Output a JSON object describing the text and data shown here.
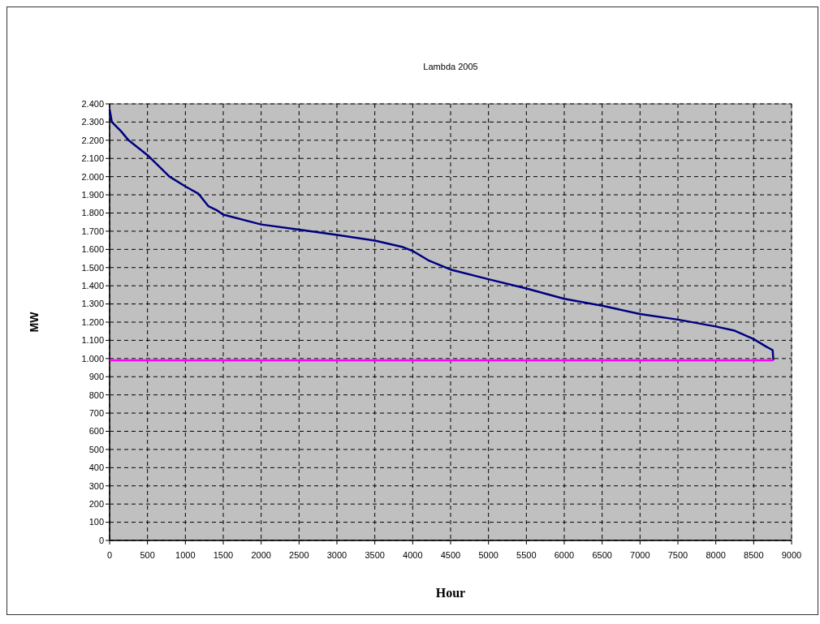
{
  "chart_data": {
    "type": "line",
    "title": "Lambda 2005",
    "xlabel": "Hour",
    "ylabel": "MW",
    "xlim": [
      0,
      9000
    ],
    "xticks": [
      0,
      500,
      1000,
      1500,
      2000,
      2500,
      3000,
      3500,
      4000,
      4500,
      5000,
      5500,
      6000,
      6500,
      7000,
      7500,
      8000,
      8500,
      9000
    ],
    "ylim": [
      0,
      2400
    ],
    "yticks": [
      0,
      100,
      200,
      300,
      400,
      500,
      600,
      700,
      800,
      900,
      {
        "value": 1000,
        "label": "1.000"
      },
      {
        "value": 1100,
        "label": "1.100"
      },
      {
        "value": 1200,
        "label": "1.200"
      },
      {
        "value": 1300,
        "label": "1.300"
      },
      {
        "value": 1400,
        "label": "1.400"
      },
      {
        "value": 1500,
        "label": "1.500"
      },
      {
        "value": 1600,
        "label": "1.600"
      },
      {
        "value": 1700,
        "label": "1.700"
      },
      {
        "value": 1800,
        "label": "1.800"
      },
      {
        "value": 1900,
        "label": "1.900"
      },
      {
        "value": 2000,
        "label": "2.000"
      },
      {
        "value": 2100,
        "label": "2.100"
      },
      {
        "value": 2200,
        "label": "2.200"
      },
      {
        "value": 2300,
        "label": "2.300"
      },
      {
        "value": 2400,
        "label": "2.400"
      }
    ],
    "grid": true,
    "marker": "none",
    "line_style": "dashed",
    "series": [
      {
        "color": "#000080",
        "line_style": "solid",
        "x": [
          0,
          30,
          150,
          250,
          500,
          790,
          1000,
          1175,
          1305,
          1415,
          1500,
          2000,
          2500,
          3000,
          3500,
          3860,
          4000,
          4220,
          4500,
          5000,
          5500,
          6000,
          6500,
          7000,
          7500,
          8000,
          8250,
          8500,
          8650,
          8750,
          8760
        ],
        "values": [
          2370,
          2300,
          2250,
          2200,
          2118,
          2000,
          1946,
          1905,
          1837,
          1815,
          1791,
          1737,
          1709,
          1680,
          1648,
          1614,
          1591,
          1537,
          1489,
          1436,
          1385,
          1328,
          1290,
          1245,
          1214,
          1176,
          1153,
          1107,
          1069,
          1046,
          990
        ]
      },
      {
        "color": "#ff00ff",
        "line_style": "solid",
        "x": [
          0,
          8760
        ],
        "values": [
          990,
          990
        ]
      }
    ]
  }
}
